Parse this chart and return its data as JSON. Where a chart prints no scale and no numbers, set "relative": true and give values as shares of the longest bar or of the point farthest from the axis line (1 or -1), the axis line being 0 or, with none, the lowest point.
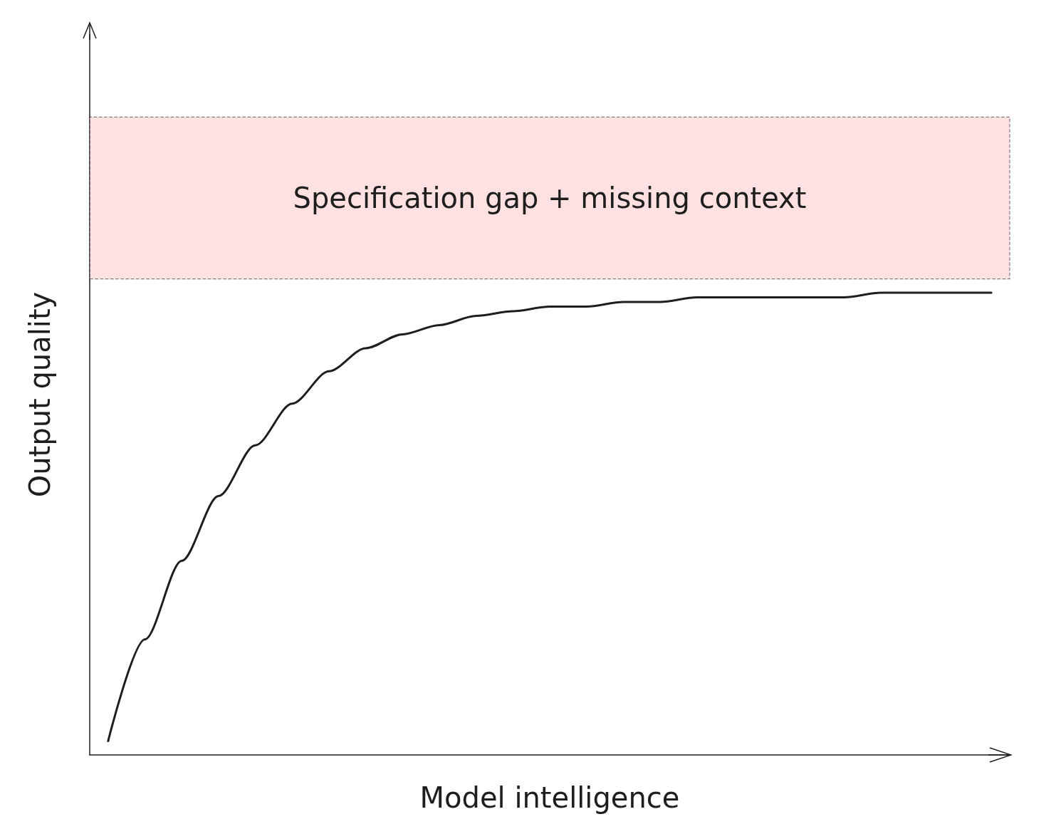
{
  "chart_data": {
    "type": "line",
    "relative": true,
    "xlabel": "Model intelligence",
    "ylabel": "Output quality",
    "categories": [
      null,
      null,
      null,
      null,
      null,
      null,
      null,
      null,
      null,
      null,
      null,
      null,
      null,
      null,
      null,
      null,
      null,
      null,
      null,
      null,
      null,
      null,
      null,
      null,
      null
    ],
    "series": [
      {
        "color": "#1e1e1e",
        "values": [
          0.03,
          0.25,
          0.42,
          0.56,
          0.67,
          0.76,
          0.83,
          0.88,
          0.91,
          0.93,
          0.95,
          0.96,
          0.97,
          0.97,
          0.98,
          0.98,
          0.99,
          0.99,
          0.99,
          0.99,
          0.99,
          1.0,
          1.0,
          1.0,
          1.0
        ]
      }
    ],
    "bands": [
      {
        "axis": "y",
        "from": 1.03,
        "to": 1.38,
        "label": "Specification gap + missing context",
        "color": "#ffc9c9"
      }
    ],
    "grid": false,
    "marker": "none",
    "line_style": "solid"
  }
}
